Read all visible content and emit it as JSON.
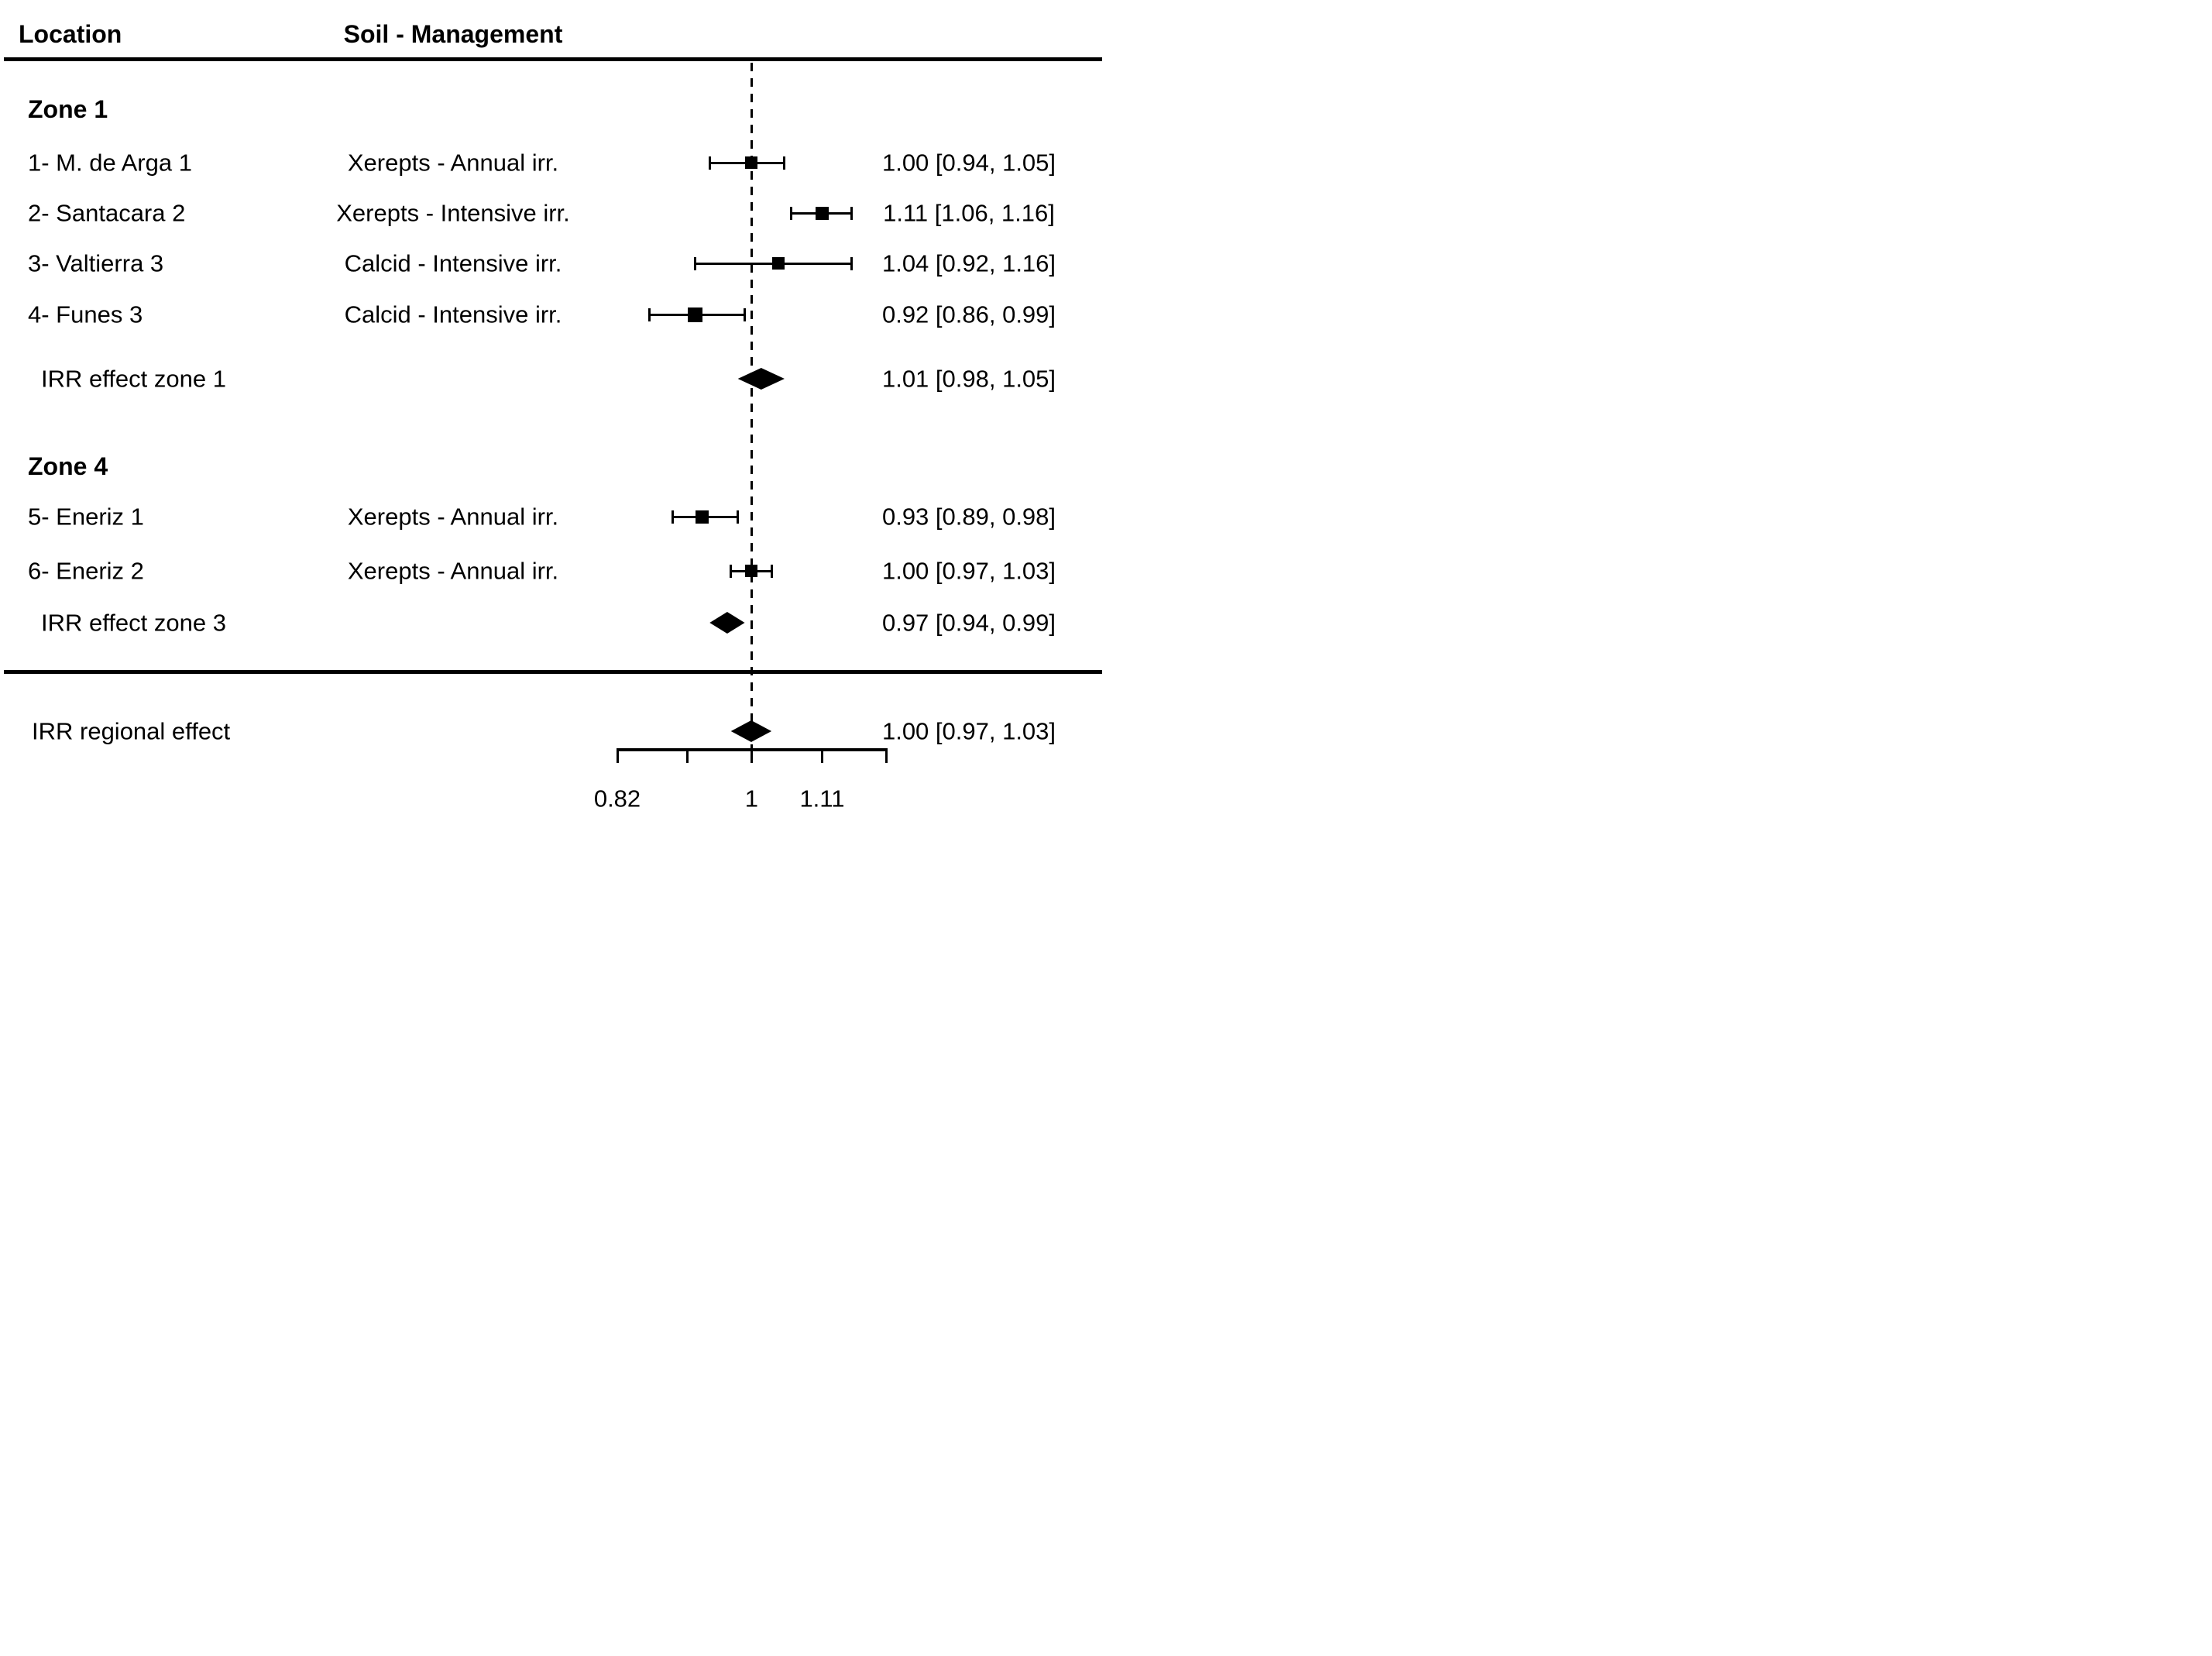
{
  "columns": {
    "location": "Location",
    "soil": "Soil - Management"
  },
  "rows": [
    {
      "type": "group",
      "label": "Zone 1"
    },
    {
      "type": "study",
      "label": "1- M. de Arga 1",
      "soil": "Xerepts - Annual irr.",
      "est": 1.0,
      "lo": 0.94,
      "hi": 1.05,
      "text": "1.00 [0.94, 1.05]",
      "marker_size": 16
    },
    {
      "type": "study",
      "label": "2- Santacara 2",
      "soil": "Xerepts - Intensive irr.",
      "est": 1.11,
      "lo": 1.06,
      "hi": 1.16,
      "text": "1.11 [1.06, 1.16]",
      "marker_size": 17
    },
    {
      "type": "study",
      "label": "3- Valtierra 3",
      "soil": "Calcid - Intensive irr.",
      "est": 1.04,
      "lo": 0.92,
      "hi": 1.16,
      "text": "1.04 [0.92, 1.16]",
      "marker_size": 16
    },
    {
      "type": "study",
      "label": "4- Funes 3",
      "soil": "Calcid - Intensive irr.",
      "est": 0.92,
      "lo": 0.86,
      "hi": 0.99,
      "text": "0.92 [0.86, 0.99]",
      "marker_size": 19
    },
    {
      "type": "summary",
      "label": "IRR effect zone 1",
      "est": 1.01,
      "lo": 0.98,
      "hi": 1.05,
      "text": "1.01 [0.98, 1.05]"
    },
    {
      "type": "group",
      "label": "Zone 4"
    },
    {
      "type": "study",
      "label": "5- Eneriz 1",
      "soil": "Xerepts - Annual irr.",
      "est": 0.93,
      "lo": 0.89,
      "hi": 0.98,
      "text": "0.93 [0.89, 0.98]",
      "marker_size": 17
    },
    {
      "type": "study",
      "label": "6- Eneriz 2",
      "soil": "Xerepts - Annual irr.",
      "est": 1.0,
      "lo": 0.97,
      "hi": 1.03,
      "text": "1.00 [0.97, 1.03]",
      "marker_size": 16
    },
    {
      "type": "summary",
      "label": "IRR effect zone 3",
      "est": 0.97,
      "lo": 0.94,
      "hi": 0.99,
      "text": "0.97 [0.94, 0.99]"
    },
    {
      "type": "separator"
    },
    {
      "type": "summary",
      "variant": "overall",
      "label": "IRR regional effect",
      "est": 1.0,
      "lo": 0.97,
      "hi": 1.03,
      "text": "1.00 [0.97, 1.03]"
    }
  ],
  "axis": {
    "scale": "log",
    "min": 0.82,
    "max": 1.22,
    "reference": 1,
    "ticks": [
      0.82,
      0.91,
      1,
      1.11,
      1.22
    ],
    "labels": [
      {
        "at": 0.82,
        "text": "0.82"
      },
      {
        "at": 1,
        "text": "1"
      },
      {
        "at": 1.11,
        "text": "1.11"
      }
    ]
  },
  "chart_data": {
    "type": "forest",
    "title": "",
    "x_scale": "log",
    "xlim": [
      0.82,
      1.22
    ],
    "x_ticks": [
      0.82,
      0.91,
      1,
      1.11,
      1.22
    ],
    "x_tick_labels": [
      "0.82",
      "",
      "1",
      "1.11",
      ""
    ],
    "reference_line": 1.0,
    "columns": [
      "Location",
      "Soil - Management"
    ],
    "groups": [
      {
        "name": "Zone 1",
        "studies": [
          {
            "label": "1- M. de Arga 1",
            "soil_management": "Xerepts - Annual irr.",
            "estimate": 1.0,
            "ci_low": 0.94,
            "ci_high": 1.05
          },
          {
            "label": "2- Santacara 2",
            "soil_management": "Xerepts - Intensive irr.",
            "estimate": 1.11,
            "ci_low": 1.06,
            "ci_high": 1.16
          },
          {
            "label": "3- Valtierra 3",
            "soil_management": "Calcid - Intensive irr.",
            "estimate": 1.04,
            "ci_low": 0.92,
            "ci_high": 1.16
          },
          {
            "label": "4- Funes 3",
            "soil_management": "Calcid - Intensive irr.",
            "estimate": 0.92,
            "ci_low": 0.86,
            "ci_high": 0.99
          }
        ],
        "summary": {
          "label": "IRR effect zone 1",
          "estimate": 1.01,
          "ci_low": 0.98,
          "ci_high": 1.05
        }
      },
      {
        "name": "Zone 4",
        "studies": [
          {
            "label": "5- Eneriz 1",
            "soil_management": "Xerepts - Annual irr.",
            "estimate": 0.93,
            "ci_low": 0.89,
            "ci_high": 0.98
          },
          {
            "label": "6- Eneriz 2",
            "soil_management": "Xerepts - Annual irr.",
            "estimate": 1.0,
            "ci_low": 0.97,
            "ci_high": 1.03
          }
        ],
        "summary": {
          "label": "IRR effect zone 3",
          "estimate": 0.97,
          "ci_low": 0.94,
          "ci_high": 0.99
        }
      }
    ],
    "overall": {
      "label": "IRR regional effect",
      "estimate": 1.0,
      "ci_low": 0.97,
      "ci_high": 1.03
    }
  }
}
